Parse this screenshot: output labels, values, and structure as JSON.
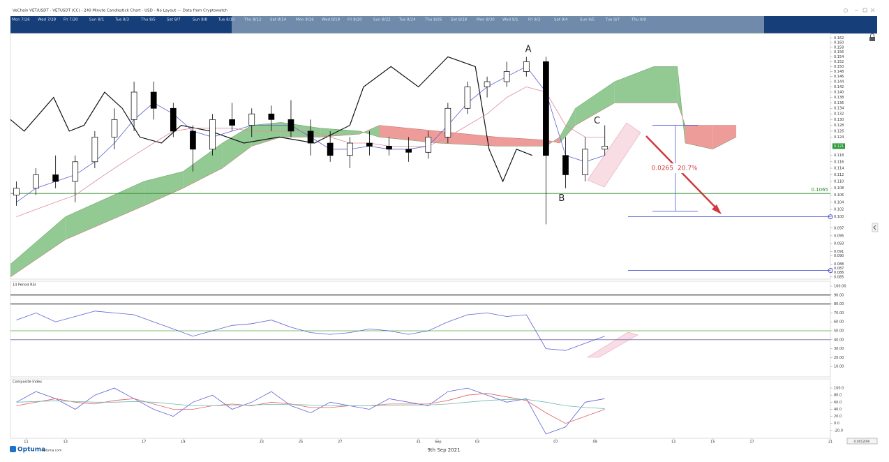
{
  "header": {
    "title": "VeChain VET/USDT - VETUSDT (CC) - 240 Minute Candlestick Chart - USD - No Layout --- Data from Cryptowatch"
  },
  "navigator": {
    "labels": [
      "Mon 7/26",
      "Wed 7/28",
      "Fri 7/30",
      "Sun 8/1",
      "Tue 8/3",
      "Thu 8/5",
      "Sat 8/7",
      "Sun 8/8",
      "Tue 8/10",
      "Thu 8/12",
      "Sat 8/14",
      "Mon 8/16",
      "Wed 8/18",
      "Fri 8/20",
      "Sun 8/22",
      "Tue 8/24",
      "Thu 8/26",
      "Sat 8/28",
      "Mon 8/30",
      "Wed 9/1",
      "Fri 9/3",
      "Sat 9/4",
      "Sun 9/5",
      "Tue 9/7",
      "Thu 9/9"
    ]
  },
  "footer": {
    "brand": "Optuma",
    "site": "optuma.com",
    "date": "9th Sep 2021",
    "scale_box": "0.001209/"
  },
  "chart_data": [
    {
      "type": "candlestick",
      "x": [
        10.5,
        11.5,
        12.5,
        13.5,
        14.5,
        15.5,
        16.5,
        17.5,
        18.5,
        19.5,
        20.5,
        21.5,
        22.5,
        23.5,
        24.5,
        25.5,
        26.5,
        27.5,
        28.5,
        29.5,
        30.5,
        31.5,
        32.5,
        33.5,
        34.5,
        35.5,
        36.5,
        37.5,
        38.5,
        39.5,
        40.5
      ],
      "open": [
        0.106,
        0.108,
        0.112,
        0.11,
        0.116,
        0.124,
        0.13,
        0.14,
        0.134,
        0.126,
        0.12,
        0.13,
        0.128,
        0.132,
        0.13,
        0.126,
        0.122,
        0.118,
        0.122,
        0.121,
        0.12,
        0.119,
        0.124,
        0.134,
        0.142,
        0.144,
        0.148,
        0.152,
        0.118,
        0.112,
        0.12
      ],
      "high": [
        0.11,
        0.114,
        0.118,
        0.118,
        0.126,
        0.134,
        0.144,
        0.144,
        0.136,
        0.128,
        0.132,
        0.136,
        0.134,
        0.135,
        0.137,
        0.13,
        0.126,
        0.124,
        0.126,
        0.124,
        0.124,
        0.126,
        0.136,
        0.144,
        0.146,
        0.152,
        0.154,
        0.154,
        0.124,
        0.124,
        0.128
      ],
      "low": [
        0.103,
        0.106,
        0.108,
        0.104,
        0.114,
        0.12,
        0.126,
        0.13,
        0.124,
        0.113,
        0.118,
        0.126,
        0.124,
        0.126,
        0.124,
        0.118,
        0.116,
        0.114,
        0.118,
        0.118,
        0.116,
        0.117,
        0.122,
        0.132,
        0.138,
        0.142,
        0.146,
        0.098,
        0.108,
        0.11,
        0.118
      ],
      "close": [
        0.108,
        0.112,
        0.11,
        0.116,
        0.124,
        0.13,
        0.14,
        0.134,
        0.126,
        0.12,
        0.13,
        0.128,
        0.132,
        0.13,
        0.126,
        0.122,
        0.118,
        0.122,
        0.121,
        0.12,
        0.119,
        0.124,
        0.134,
        0.142,
        0.144,
        0.148,
        0.152,
        0.118,
        0.112,
        0.12,
        0.121
      ],
      "up_color": "#ffffff",
      "down_color": "#000000",
      "xlim": [
        10.2,
        52
      ],
      "ylim": [
        0.0845,
        0.164
      ],
      "log_scale": true,
      "yticks": [
        0.162,
        {
          "value": 0.16,
          "label": "0.160"
        },
        0.158,
        0.156,
        0.154,
        0.152,
        {
          "value": 0.15,
          "label": "0.150"
        },
        0.148,
        0.146,
        0.144,
        0.142,
        {
          "value": 0.14,
          "label": "0.140"
        },
        0.138,
        0.136,
        0.134,
        0.132,
        {
          "value": 0.13,
          "label": "0.130"
        },
        0.128,
        0.126,
        0.124,
        0.118,
        0.116,
        0.114,
        0.112,
        {
          "value": 0.11,
          "label": "0.110"
        },
        0.108,
        0.106,
        0.104,
        0.102,
        {
          "value": 0.1,
          "label": "0.100"
        },
        0.097,
        0.095,
        0.093,
        0.091,
        {
          "value": 0.09,
          "label": "0.090"
        },
        0.088,
        0.087,
        0.086,
        0.085
      ],
      "current_price": {
        "value": 0.121,
        "label": "0.121",
        "color": "#2f9a3a"
      },
      "cloud": {
        "x": [
          10.2,
          13,
          17,
          19,
          21,
          22.5,
          24,
          26,
          28,
          29,
          32,
          35,
          37.5,
          38.2,
          39,
          41,
          43,
          44.2,
          44.6,
          46,
          47.2
        ],
        "span_a": [
          0.088,
          0.1,
          0.11,
          0.113,
          0.122,
          0.128,
          0.129,
          0.127,
          0.126,
          0.124,
          0.122,
          0.121,
          0.121,
          0.124,
          0.134,
          0.144,
          0.15,
          0.15,
          0.122,
          0.12,
          0.124
        ],
        "span_b": [
          0.085,
          0.094,
          0.103,
          0.108,
          0.114,
          0.121,
          0.124,
          0.124,
          0.125,
          0.128,
          0.126,
          0.124,
          0.123,
          0.122,
          0.128,
          0.136,
          0.136,
          0.136,
          0.128,
          0.128,
          0.128
        ],
        "up_color": "#93c993",
        "down_color": "#ee9c9a"
      },
      "lines": [
        {
          "color": "#111111",
          "x": [
            10.2,
            10.9,
            12.4,
            13.2,
            13.95,
            15.0,
            15.9,
            16.8,
            17.9,
            18.9,
            20.4,
            22.1,
            23.9,
            25.7,
            27.5,
            28.2,
            29.6,
            31.0,
            32.5,
            33.9,
            34.6,
            35.3,
            36.0,
            36.8
          ],
          "values": [
            0.13,
            0.126,
            0.138,
            0.126,
            0.128,
            0.14,
            0.134,
            0.124,
            0.122,
            0.128,
            0.126,
            0.122,
            0.124,
            0.122,
            0.128,
            0.142,
            0.15,
            0.142,
            0.154,
            0.15,
            0.12,
            0.11,
            0.12,
            0.118
          ]
        },
        {
          "color": "#5a5fd6",
          "x": [
            10.5,
            11.5,
            12.5,
            13.5,
            14.5,
            15.5,
            16.5,
            17.5,
            18.5,
            19.5,
            20.5,
            21.5,
            22.5,
            23.5,
            24.5,
            25.5,
            26.5,
            27.5,
            28.5,
            29.5,
            30.5,
            31.5,
            32.5,
            33.5,
            34.5,
            35.5,
            36.5,
            37.5,
            38.5,
            39.5,
            40.5
          ],
          "values": [
            0.104,
            0.108,
            0.11,
            0.112,
            0.116,
            0.122,
            0.13,
            0.136,
            0.132,
            0.126,
            0.124,
            0.126,
            0.128,
            0.128,
            0.128,
            0.124,
            0.12,
            0.12,
            0.121,
            0.12,
            0.12,
            0.121,
            0.128,
            0.136,
            0.142,
            0.146,
            0.15,
            0.14,
            0.118,
            0.116,
            0.118
          ]
        },
        {
          "color": "#e08a9a",
          "x": [
            10.5,
            11.5,
            12.5,
            13.5,
            14.5,
            15.5,
            16.5,
            17.5,
            18.5,
            19.5,
            20.5,
            21.5,
            22.5,
            23.5,
            24.5,
            25.5,
            26.5,
            27.5,
            28.5,
            29.5,
            30.5,
            31.5,
            32.5,
            33.5,
            34.5,
            35.5,
            36.5,
            37.5,
            38.5,
            39.5,
            40.5
          ],
          "values": [
            0.1,
            0.102,
            0.104,
            0.106,
            0.11,
            0.114,
            0.118,
            0.122,
            0.126,
            0.127,
            0.127,
            0.127,
            0.126,
            0.126,
            0.126,
            0.126,
            0.124,
            0.122,
            0.122,
            0.121,
            0.121,
            0.121,
            0.124,
            0.128,
            0.132,
            0.138,
            0.142,
            0.14,
            0.128,
            0.124,
            0.124
          ]
        }
      ],
      "levels": [
        {
          "value": 0.1065,
          "label": "0.1065",
          "color": "#2e8b2e"
        },
        {
          "value": 0.1,
          "color": "#4f5bd5"
        },
        {
          "value": 0.0865,
          "color": "#4f5bd5"
        }
      ],
      "points": [
        {
          "label": "A",
          "x": 36.6,
          "y": 0.157
        },
        {
          "label": "B",
          "x": 38.3,
          "y": 0.105
        },
        {
          "label": "C",
          "x": 40.1,
          "y": 0.1295
        }
      ],
      "measure": {
        "from": 0.128,
        "to": 0.1015,
        "label": "0.0265",
        "pct_label": "20.7%",
        "color": "#d2383c"
      }
    },
    {
      "type": "line",
      "title": "14 Period RSI",
      "x": [
        10.5,
        11.5,
        12.5,
        13.5,
        14.5,
        15.5,
        16.5,
        17.5,
        18.5,
        19.5,
        20.5,
        21.5,
        22.5,
        23.5,
        24.5,
        25.5,
        26.5,
        27.5,
        28.5,
        29.5,
        30.5,
        31.5,
        32.5,
        33.5,
        34.5,
        35.5,
        36.5,
        37.5,
        38.5,
        39.5,
        40.5
      ],
      "series": [
        {
          "color": "#5a5fd6",
          "values": [
            62,
            70,
            60,
            66,
            72,
            70,
            68,
            60,
            52,
            44,
            50,
            56,
            58,
            62,
            54,
            48,
            46,
            48,
            52,
            50,
            46,
            50,
            60,
            68,
            70,
            66,
            68,
            30,
            28,
            36,
            44
          ]
        }
      ],
      "xlim": [
        10.2,
        52
      ],
      "ylim": [
        0,
        100
      ],
      "yticks": [
        {
          "value": 100,
          "label": "100.00"
        },
        {
          "value": 90,
          "label": "90.00"
        },
        {
          "value": 80,
          "label": "80.00"
        },
        {
          "value": 70,
          "label": "70.00"
        },
        {
          "value": 60,
          "label": "60.00"
        },
        {
          "value": 50,
          "label": "50.00"
        },
        {
          "value": 40,
          "label": "40.00"
        },
        {
          "value": 30,
          "label": "30.00"
        },
        {
          "value": 20,
          "label": "20.00"
        },
        {
          "value": 10,
          "label": "10.00"
        }
      ],
      "levels": [
        {
          "value": 90,
          "color": "#111111"
        },
        {
          "value": 80,
          "color": "#111111"
        },
        {
          "value": 50,
          "color": "#7fbf6f"
        },
        {
          "value": 40,
          "color": "#8a7fc0"
        }
      ]
    },
    {
      "type": "line",
      "title": "Composite Index",
      "x": [
        10.5,
        11.5,
        12.5,
        13.5,
        14.5,
        15.5,
        16.5,
        17.5,
        18.5,
        19.5,
        20.5,
        21.5,
        22.5,
        23.5,
        24.5,
        25.5,
        26.5,
        27.5,
        28.5,
        29.5,
        30.5,
        31.5,
        32.5,
        33.5,
        34.5,
        35.5,
        36.5,
        37.5,
        38.5,
        39.5,
        40.5
      ],
      "series": [
        {
          "color": "#5a5fd6",
          "values": [
            60,
            90,
            70,
            40,
            80,
            100,
            70,
            40,
            20,
            60,
            80,
            40,
            60,
            90,
            50,
            30,
            60,
            50,
            40,
            70,
            60,
            50,
            90,
            100,
            80,
            60,
            70,
            -30,
            -10,
            60,
            70
          ]
        },
        {
          "color": "#e06060",
          "values": [
            50,
            60,
            70,
            60,
            55,
            65,
            70,
            55,
            40,
            40,
            50,
            55,
            50,
            60,
            55,
            45,
            45,
            50,
            50,
            55,
            55,
            55,
            65,
            80,
            85,
            75,
            65,
            30,
            0,
            20,
            40
          ]
        },
        {
          "color": "#6fb8b0",
          "values": [
            60,
            62,
            64,
            62,
            60,
            60,
            62,
            60,
            55,
            50,
            50,
            52,
            52,
            54,
            54,
            52,
            50,
            50,
            50,
            50,
            52,
            52,
            55,
            60,
            65,
            68,
            68,
            60,
            50,
            45,
            42
          ]
        }
      ],
      "xlim": [
        10.2,
        52
      ],
      "xticks": [
        11,
        13,
        17,
        19,
        23,
        25,
        27,
        31,
        {
          "value": 32,
          "label": "Sep"
        },
        {
          "value": 34,
          "label": "03"
        },
        {
          "value": 38,
          "label": "07"
        },
        {
          "value": 40,
          "label": "09"
        },
        {
          "value": 44,
          "label": "13"
        },
        {
          "value": 46,
          "label": "15"
        },
        {
          "value": 48,
          "label": "17"
        },
        {
          "value": 52,
          "label": "21"
        }
      ],
      "ylim": [
        -40,
        110
      ],
      "yticks": [
        {
          "value": 100,
          "label": "100.0"
        },
        {
          "value": 80,
          "label": "80.0"
        },
        {
          "value": 60,
          "label": "60.0"
        },
        {
          "value": 40,
          "label": "40.0"
        },
        {
          "value": 20,
          "label": "20.0"
        },
        {
          "value": 0,
          "label": "0.0"
        },
        {
          "value": -20,
          "label": "-20.0"
        }
      ]
    }
  ]
}
